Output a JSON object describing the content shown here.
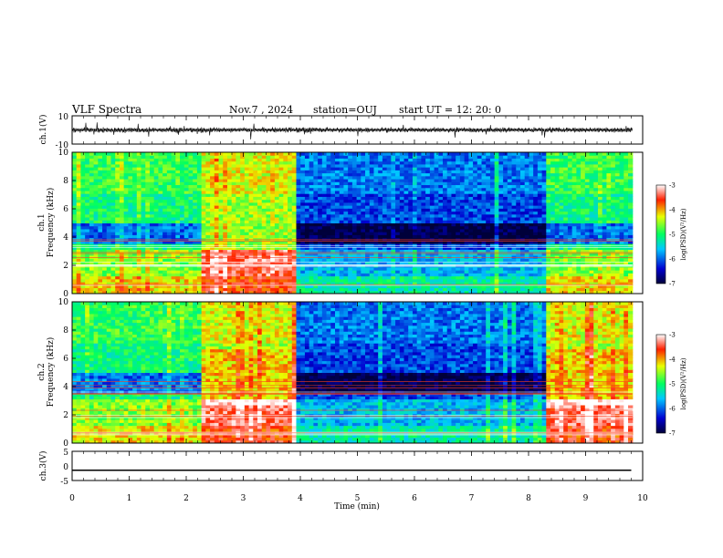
{
  "header": {
    "title": "VLF Spectra",
    "date": "Nov.7 , 2024",
    "station": "station=OUJ",
    "start": "start UT =  12: 20: 0"
  },
  "chart_data": [
    {
      "type": "line",
      "panel": "waveform-ch1",
      "ylabel": "ch.1(V)",
      "ylim": [
        -10,
        10
      ],
      "yticks": [
        "10",
        "-10"
      ],
      "note": "noisy broadband waveform centred near 0 V with short bursts"
    },
    {
      "type": "heatmap",
      "panel": "spectrogram-ch1",
      "ylabel": "ch.1\nFrequency (kHz)",
      "ylim": [
        0,
        10
      ],
      "yticks": [
        "0",
        "2",
        "4",
        "6",
        "8",
        "10"
      ],
      "colorbar": {
        "label": "log(PSD)(V²/Hz)",
        "range": [
          -7,
          -3
        ],
        "ticks": [
          "-3",
          "-4",
          "-5",
          "-6",
          "-7"
        ]
      },
      "time_segments_min": [
        {
          "from": 0,
          "to": 2.2,
          "level": "moderate"
        },
        {
          "from": 2.2,
          "to": 3.9,
          "level": "high"
        },
        {
          "from": 3.9,
          "to": 8.3,
          "level": "low"
        },
        {
          "from": 8.3,
          "to": 9.8,
          "level": "moderate"
        }
      ]
    },
    {
      "type": "heatmap",
      "panel": "spectrogram-ch2",
      "ylabel": "ch.2\nFrequency (kHz)",
      "ylim": [
        0,
        10
      ],
      "yticks": [
        "0",
        "2",
        "4",
        "6",
        "8",
        "10"
      ],
      "colorbar": {
        "label": "log(PSD)(V²/Hz)",
        "range": [
          -7,
          -3
        ],
        "ticks": [
          "-3",
          "-4",
          "-5",
          "-6",
          "-7"
        ]
      },
      "time_segments_min": [
        {
          "from": 0,
          "to": 2.2,
          "level": "moderate"
        },
        {
          "from": 2.2,
          "to": 3.9,
          "level": "high"
        },
        {
          "from": 3.9,
          "to": 8.3,
          "level": "low"
        },
        {
          "from": 8.3,
          "to": 9.8,
          "level": "high"
        }
      ]
    },
    {
      "type": "line",
      "panel": "waveform-ch3",
      "ylabel": "ch.3(V)",
      "ylim": [
        -5,
        5
      ],
      "yticks": [
        "5",
        "0",
        "-5"
      ],
      "x": [
        0,
        9.8
      ],
      "y": [
        -1.5,
        -1.5
      ]
    }
  ],
  "xaxis": {
    "label": "Time (min)",
    "range": [
      0,
      10
    ],
    "ticks": [
      "0",
      "1",
      "2",
      "3",
      "4",
      "5",
      "6",
      "7",
      "8",
      "9",
      "10"
    ]
  },
  "colors": {
    "background": "#ffffff",
    "trace": "#000000",
    "colormap": [
      "#00003a",
      "#0000d0",
      "#00c8ff",
      "#00ff60",
      "#e8ff00",
      "#ff2000",
      "#ffffff"
    ]
  }
}
